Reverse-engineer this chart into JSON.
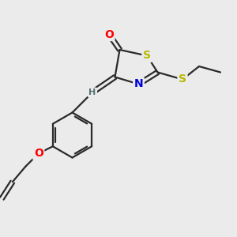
{
  "bg_color": "#ebebeb",
  "bond_color": "#2a2a2a",
  "O_color": "#ff0000",
  "S_color": "#b8b800",
  "N_color": "#0000dd",
  "H_color": "#557070",
  "bond_lw": 1.6,
  "font_size": 9,
  "fig_size": [
    3.0,
    3.0
  ],
  "dpi": 100,
  "xlim": [
    0,
    10
  ],
  "ylim": [
    0,
    10
  ]
}
